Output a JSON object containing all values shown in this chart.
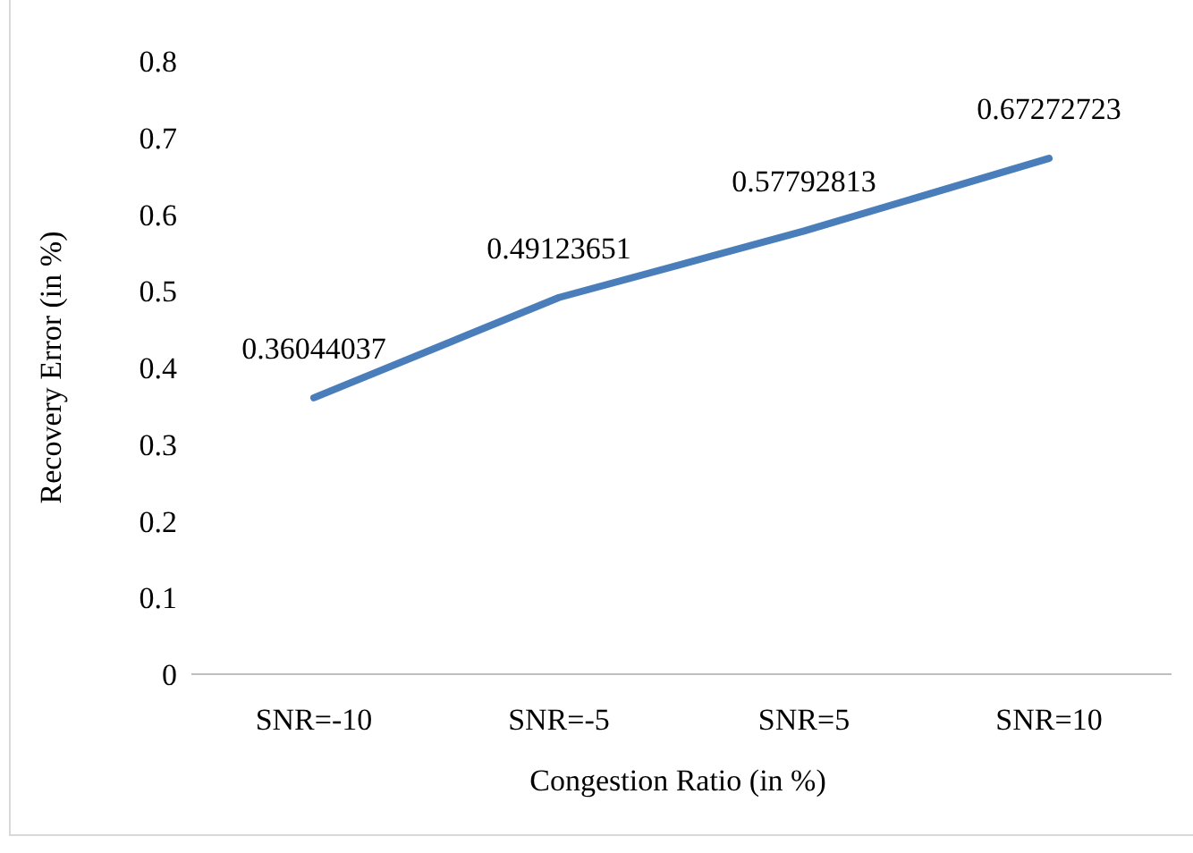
{
  "chart_data": {
    "type": "line",
    "xlabel": "Congestion Ratio (in %)",
    "ylabel": "Recovery Error (in %)",
    "categories": [
      "SNR=-10",
      "SNR=-5",
      "SNR=5",
      "SNR=10"
    ],
    "series": [
      {
        "color": "#4a7ebb",
        "values": [
          0.36044037,
          0.49123651,
          0.57792813,
          0.67272723
        ]
      }
    ],
    "ylim": [
      0,
      0.8
    ],
    "yticks": [
      0,
      0.1,
      0.2,
      0.3,
      0.4,
      0.5,
      0.6,
      0.7,
      0.8
    ],
    "grid": false,
    "data_labels": true,
    "marker": "none",
    "line_style": "solid"
  }
}
